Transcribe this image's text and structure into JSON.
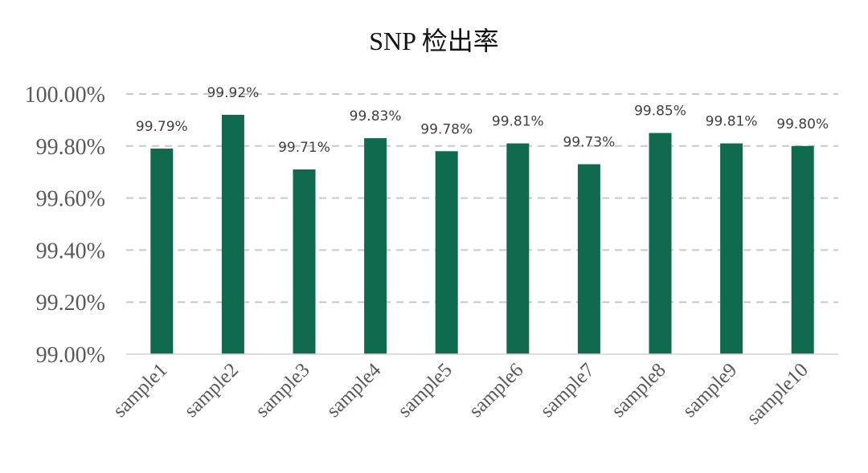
{
  "chart_data": {
    "type": "bar",
    "title": "SNP 检出率",
    "xlabel": "",
    "ylabel": "",
    "categories": [
      "sample1",
      "sample2",
      "sample3",
      "sample4",
      "sample5",
      "sample6",
      "sample7",
      "sample8",
      "sample9",
      "sample10"
    ],
    "values": [
      99.79,
      99.92,
      99.71,
      99.83,
      99.78,
      99.81,
      99.73,
      99.85,
      99.81,
      99.8
    ],
    "data_labels": [
      "99.79%",
      "99.92%",
      "99.71%",
      "99.83%",
      "99.78%",
      "99.81%",
      "99.73%",
      "99.85%",
      "99.81%",
      "99.80%"
    ],
    "y_ticks": [
      99.0,
      99.2,
      99.4,
      99.6,
      99.8,
      100.0
    ],
    "y_tick_labels": [
      "99.00%",
      "99.20%",
      "99.40%",
      "99.60%",
      "99.80%",
      "100.00%"
    ],
    "ylim": [
      99.0,
      100.0
    ],
    "grid": true,
    "legend": "none",
    "bar_color": "#0f6a4e"
  }
}
